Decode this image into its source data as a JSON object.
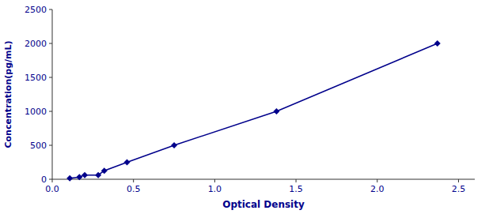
{
  "chart_data": {
    "type": "line",
    "xlabel": "Optical Density",
    "ylabel": "Concentration(pg/mL)",
    "x": [
      0.108,
      0.167,
      0.2,
      0.283,
      0.32,
      0.46,
      0.75,
      1.38,
      2.37
    ],
    "series": [
      {
        "values": [
          15.6,
          31.2,
          62.5,
          62.5,
          125,
          250,
          500,
          1000,
          2000
        ],
        "color": "#00008B",
        "marker": "diamond",
        "line_style": "solid"
      }
    ],
    "xlim": [
      0.0,
      2.6
    ],
    "ylim": [
      0,
      2500
    ],
    "xticks": [
      {
        "value": 0,
        "label": "0.0"
      },
      {
        "value": 0.5,
        "label": "0.5"
      },
      {
        "value": 1,
        "label": "1.0"
      },
      {
        "value": 1.5,
        "label": "1.5"
      },
      {
        "value": 2,
        "label": "2.0"
      },
      {
        "value": 2.5,
        "label": "2.5"
      }
    ],
    "yticks": [
      0,
      500,
      1000,
      1500,
      2000,
      2500
    ],
    "grid": false
  }
}
